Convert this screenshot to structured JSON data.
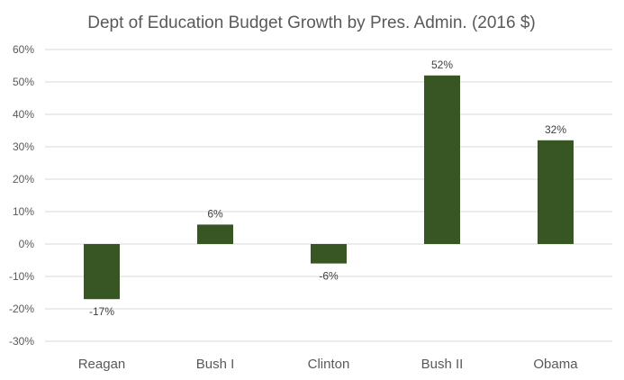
{
  "chart_data": {
    "type": "bar",
    "title": "Dept of Education Budget Growth by Pres. Admin.  (2016 $)",
    "xlabel": "",
    "ylabel": "",
    "categories": [
      "Reagan",
      "Bush I",
      "Clinton",
      "Bush II",
      "Obama"
    ],
    "values": [
      -17,
      6,
      -6,
      52,
      32
    ],
    "data_labels": [
      "-17%",
      "6%",
      "-6%",
      "52%",
      "32%"
    ],
    "ylim": [
      -30,
      60
    ],
    "yticks": [
      60,
      50,
      40,
      30,
      20,
      10,
      0,
      -10,
      -20,
      -30
    ],
    "ytick_labels": [
      "60%",
      "50%",
      "40%",
      "30%",
      "20%",
      "10%",
      "0%",
      "-10%",
      "-20%",
      "-30%"
    ],
    "bar_color": "#375623",
    "grid": true,
    "legend": "none"
  }
}
